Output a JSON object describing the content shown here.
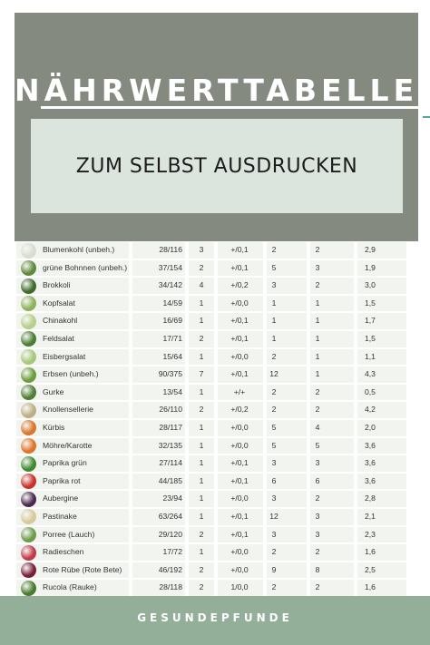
{
  "header": {
    "title": "NÄHRWERTTABELLEN",
    "subtitle": "ZUM SELBST AUSDRUCKEN"
  },
  "table": {
    "rows": [
      {
        "name": "Blumenkohl (unbeh.)",
        "kcal": "28/116",
        "a": "3",
        "b": "+/0,1",
        "c": "2",
        "d": "2",
        "e": "2,9",
        "icon": "cauliflower-icon",
        "color": "#d9ddd0"
      },
      {
        "name": "grüne Bohnnen (unbeh.)",
        "kcal": "37/154",
        "a": "2",
        "b": "+/0,1",
        "c": "5",
        "d": "3",
        "e": "1,9",
        "icon": "green-beans-icon",
        "color": "#5f8a3a"
      },
      {
        "name": "Brokkoli",
        "kcal": "34/142",
        "a": "4",
        "b": "+/0,2",
        "c": "3",
        "d": "2",
        "e": "3,0",
        "icon": "broccoli-icon",
        "color": "#3f6b2c"
      },
      {
        "name": "Kopfsalat",
        "kcal": "14/59",
        "a": "1",
        "b": "+/0,0",
        "c": "1",
        "d": "1",
        "e": "1,5",
        "icon": "lettuce-icon",
        "color": "#8cb35a"
      },
      {
        "name": "Chinakohl",
        "kcal": "16/69",
        "a": "1",
        "b": "+/0,1",
        "c": "1",
        "d": "1",
        "e": "1,7",
        "icon": "chinese-cabbage-icon",
        "color": "#b7cf8a"
      },
      {
        "name": "Feldsalat",
        "kcal": "17/71",
        "a": "2",
        "b": "+/0,1",
        "c": "1",
        "d": "1",
        "e": "1,5",
        "icon": "lambs-lettuce-icon",
        "color": "#4c7d35"
      },
      {
        "name": "Eisbergsalat",
        "kcal": "15/64",
        "a": "1",
        "b": "+/0,0",
        "c": "2",
        "d": "1",
        "e": "1,1",
        "icon": "iceberg-lettuce-icon",
        "color": "#a6c77a"
      },
      {
        "name": "Erbsen (unbeh.)",
        "kcal": "90/375",
        "a": "7",
        "b": "+/0,1",
        "c": "12",
        "d": "1",
        "e": "4,3",
        "icon": "peas-icon",
        "color": "#6a9d3b"
      },
      {
        "name": "Gurke",
        "kcal": "13/54",
        "a": "1",
        "b": "+/+",
        "c": "2",
        "d": "2",
        "e": "0,5",
        "icon": "cucumber-icon",
        "color": "#4f7f34"
      },
      {
        "name": "Knollensellerie",
        "kcal": "26/110",
        "a": "2",
        "b": "+/0,2",
        "c": "2",
        "d": "2",
        "e": "4,2",
        "icon": "celeriac-icon",
        "color": "#bfae85"
      },
      {
        "name": "Kürbis",
        "kcal": "28/117",
        "a": "1",
        "b": "+/0,0",
        "c": "5",
        "d": "4",
        "e": "2,0",
        "icon": "pumpkin-icon",
        "color": "#d9772b"
      },
      {
        "name": "Möhre/Karotte",
        "kcal": "32/135",
        "a": "1",
        "b": "+/0,0",
        "c": "5",
        "d": "5",
        "e": "3,6",
        "icon": "carrot-icon",
        "color": "#e0742a"
      },
      {
        "name": "Paprika grün",
        "kcal": "27/114",
        "a": "1",
        "b": "+/0,1",
        "c": "3",
        "d": "3",
        "e": "3,6",
        "icon": "green-pepper-icon",
        "color": "#3f8a2e"
      },
      {
        "name": "Paprika rot",
        "kcal": "44/185",
        "a": "1",
        "b": "+/0,1",
        "c": "6",
        "d": "6",
        "e": "3,6",
        "icon": "red-pepper-icon",
        "color": "#c8322a"
      },
      {
        "name": "Aubergine",
        "kcal": "23/94",
        "a": "1",
        "b": "+/0,0",
        "c": "3",
        "d": "2",
        "e": "2,8",
        "icon": "eggplant-icon",
        "color": "#4a2b4f"
      },
      {
        "name": "Pastinake",
        "kcal": "63/264",
        "a": "1",
        "b": "+/0,1",
        "c": "12",
        "d": "3",
        "e": "2,1",
        "icon": "parsnip-icon",
        "color": "#d8c99a"
      },
      {
        "name": "Porree (Lauch)",
        "kcal": "29/120",
        "a": "2",
        "b": "+/0,1",
        "c": "3",
        "d": "3",
        "e": "2,3",
        "icon": "leek-icon",
        "color": "#6f9a4a"
      },
      {
        "name": "Radieschen",
        "kcal": "17/72",
        "a": "1",
        "b": "+/0,0",
        "c": "2",
        "d": "2",
        "e": "1,6",
        "icon": "radish-icon",
        "color": "#c23a4a"
      },
      {
        "name": "Rote Rübe (Rote Bete)",
        "kcal": "46/192",
        "a": "2",
        "b": "+/0,0",
        "c": "9",
        "d": "8",
        "e": "2,5",
        "icon": "beetroot-icon",
        "color": "#7a1f3a"
      },
      {
        "name": "Rucola (Rauke)",
        "kcal": "28/118",
        "a": "2",
        "b": "1/0,0",
        "c": "2",
        "d": "2",
        "e": "1,6",
        "icon": "arugula-icon",
        "color": "#4a7a2f"
      }
    ]
  },
  "footer": {
    "brand": "GESUNDEPFUNDE"
  }
}
